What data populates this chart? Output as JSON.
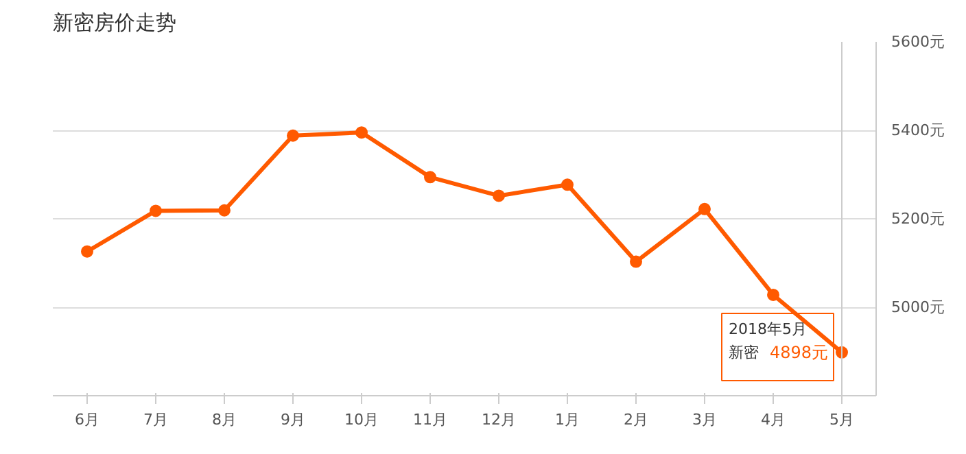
{
  "chart_data": {
    "type": "line",
    "title": "新密房价走势",
    "categories": [
      "6月",
      "7月",
      "8月",
      "9月",
      "10月",
      "11月",
      "12月",
      "1月",
      "2月",
      "3月",
      "4月",
      "5月"
    ],
    "series": [
      {
        "name": "新密",
        "color": "#ff5a00",
        "values": [
          5126,
          5218,
          5219,
          5388,
          5395,
          5294,
          5252,
          5277,
          5103,
          5222,
          5028,
          4898
        ],
        "value_labels": [
          null,
          null,
          null,
          null,
          null,
          null,
          null,
          null,
          null,
          null,
          null,
          "4898元"
        ]
      }
    ],
    "annotations": [
      {
        "text": "2018年5月",
        "x": "5月",
        "y": 4898
      }
    ],
    "ref_lines": [
      {
        "axis": "x",
        "value": "5月",
        "color": "#cccccc"
      }
    ],
    "ylim": [
      4800,
      5600
    ],
    "yticks": [
      {
        "value": 5000,
        "label": "5000元"
      },
      {
        "value": 5200,
        "label": "5200元"
      },
      {
        "value": 5400,
        "label": "5400元"
      },
      {
        "value": 5600,
        "label": "5600元"
      }
    ],
    "grid": "y",
    "marker": "circle",
    "line_style": "solid"
  }
}
